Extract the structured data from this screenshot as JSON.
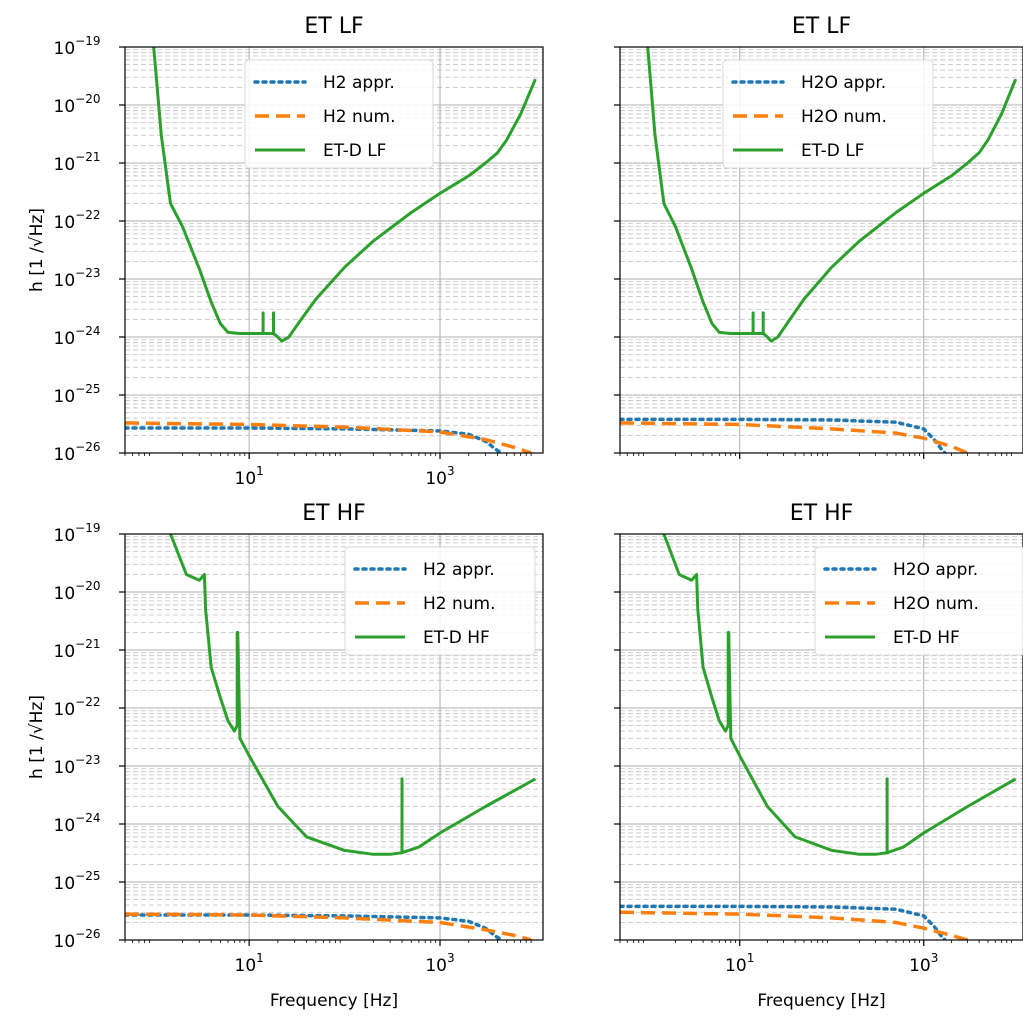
{
  "chart_data": [
    {
      "type": "line",
      "title": "ET LF",
      "xlabel": "",
      "ylabel": "h [1 /√Hz]",
      "xscale": "log",
      "yscale": "log",
      "xlim": [
        0.5,
        12000
      ],
      "ylim": [
        1e-26,
        1e-19
      ],
      "x_ticks": [
        "10^1",
        "10^3"
      ],
      "y_ticks": [
        "10^-19",
        "10^-20",
        "10^-21",
        "10^-22",
        "10^-23",
        "10^-24",
        "10^-25",
        "10^-26"
      ],
      "grid": true,
      "legend_position": "upper center",
      "series": [
        {
          "name": "H2 appr.",
          "color": "#1f77b4",
          "style": "dotted",
          "points": [
            [
              0.5,
              2.7e-26
            ],
            [
              10,
              2.7e-26
            ],
            [
              100,
              2.6e-26
            ],
            [
              1000,
              2.4e-26
            ],
            [
              2000,
              2.1e-26
            ],
            [
              3000,
              1.6e-26
            ],
            [
              4000,
              1.1e-26
            ],
            [
              4500,
              1e-26
            ]
          ]
        },
        {
          "name": "H2 num.",
          "color": "#ff7f0e",
          "style": "dashed",
          "points": [
            [
              0.5,
              3.3e-26
            ],
            [
              10,
              3.1e-26
            ],
            [
              100,
              2.8e-26
            ],
            [
              1000,
              2.3e-26
            ],
            [
              3000,
              1.7e-26
            ],
            [
              6000,
              1.25e-26
            ],
            [
              9000,
              1e-26
            ]
          ]
        },
        {
          "name": "ET-D LF",
          "color": "#2ca02c",
          "style": "solid",
          "points": [
            [
              1.0,
              1e-19
            ],
            [
              1.2,
              3e-21
            ],
            [
              1.5,
              2e-22
            ],
            [
              2,
              8e-23
            ],
            [
              3,
              1.5e-23
            ],
            [
              4,
              4e-24
            ],
            [
              5,
              1.7e-24
            ],
            [
              6,
              1.2e-24
            ],
            [
              8,
              1.15e-24
            ],
            [
              12,
              1.15e-24
            ],
            [
              14,
              1.15e-24
            ],
            [
              14,
              2.6e-24
            ],
            [
              14,
              1.15e-24
            ],
            [
              18,
              1.15e-24
            ],
            [
              18,
              2.6e-24
            ],
            [
              18,
              1.15e-24
            ],
            [
              20,
              1e-24
            ],
            [
              22,
              8.5e-25
            ],
            [
              26,
              1e-24
            ],
            [
              35,
              2e-24
            ],
            [
              50,
              4.5e-24
            ],
            [
              100,
              1.6e-23
            ],
            [
              200,
              4.5e-23
            ],
            [
              500,
              1.4e-22
            ],
            [
              1000,
              3e-22
            ],
            [
              2000,
              6e-22
            ],
            [
              3000,
              1e-21
            ],
            [
              4000,
              1.5e-21
            ],
            [
              5000,
              2.5e-21
            ],
            [
              7000,
              7e-21
            ],
            [
              10000,
              2.8e-20
            ]
          ]
        }
      ]
    },
    {
      "type": "line",
      "title": "ET LF",
      "xlabel": "",
      "ylabel": "",
      "xscale": "log",
      "yscale": "log",
      "xlim": [
        0.5,
        12000
      ],
      "ylim": [
        1e-26,
        1e-19
      ],
      "x_ticks": [],
      "y_ticks": [],
      "grid": true,
      "legend_position": "upper center",
      "series": [
        {
          "name": "H2O appr.",
          "color": "#1f77b4",
          "style": "dotted",
          "points": [
            [
              0.5,
              3.8e-26
            ],
            [
              10,
              3.8e-26
            ],
            [
              100,
              3.7e-26
            ],
            [
              500,
              3.4e-26
            ],
            [
              1000,
              2.6e-26
            ],
            [
              1300,
              1.7e-26
            ],
            [
              1600,
              1.1e-26
            ],
            [
              1700,
              1e-26
            ]
          ]
        },
        {
          "name": "H2O num.",
          "color": "#ff7f0e",
          "style": "dashed",
          "points": [
            [
              0.5,
              3.3e-26
            ],
            [
              10,
              3.1e-26
            ],
            [
              100,
              2.6e-26
            ],
            [
              500,
              2.2e-26
            ],
            [
              1000,
              1.8e-26
            ],
            [
              2000,
              1.3e-26
            ],
            [
              3000,
              1e-26
            ]
          ]
        },
        {
          "name": "ET-D LF",
          "color": "#2ca02c",
          "style": "solid",
          "points": [
            [
              1.0,
              1e-19
            ],
            [
              1.2,
              3e-21
            ],
            [
              1.5,
              2e-22
            ],
            [
              2,
              8e-23
            ],
            [
              3,
              1.5e-23
            ],
            [
              4,
              4e-24
            ],
            [
              5,
              1.7e-24
            ],
            [
              6,
              1.2e-24
            ],
            [
              8,
              1.15e-24
            ],
            [
              12,
              1.15e-24
            ],
            [
              14,
              1.15e-24
            ],
            [
              14,
              2.6e-24
            ],
            [
              14,
              1.15e-24
            ],
            [
              18,
              1.15e-24
            ],
            [
              18,
              2.6e-24
            ],
            [
              18,
              1.15e-24
            ],
            [
              20,
              1e-24
            ],
            [
              22,
              8.5e-25
            ],
            [
              26,
              1e-24
            ],
            [
              35,
              2e-24
            ],
            [
              50,
              4.5e-24
            ],
            [
              100,
              1.6e-23
            ],
            [
              200,
              4.5e-23
            ],
            [
              500,
              1.4e-22
            ],
            [
              1000,
              3e-22
            ],
            [
              2000,
              6e-22
            ],
            [
              3000,
              1e-21
            ],
            [
              4000,
              1.5e-21
            ],
            [
              5000,
              2.5e-21
            ],
            [
              7000,
              7e-21
            ],
            [
              10000,
              2.8e-20
            ]
          ]
        }
      ]
    },
    {
      "type": "line",
      "title": "ET HF",
      "xlabel": "Frequency [Hz]",
      "ylabel": "h [1 /√Hz]",
      "xscale": "log",
      "yscale": "log",
      "xlim": [
        0.5,
        12000
      ],
      "ylim": [
        1e-26,
        1e-19
      ],
      "x_ticks": [
        "10^1",
        "10^3"
      ],
      "y_ticks": [
        "10^-19",
        "10^-20",
        "10^-21",
        "10^-22",
        "10^-23",
        "10^-24",
        "10^-25",
        "10^-26"
      ],
      "grid": true,
      "legend_position": "upper right",
      "series": [
        {
          "name": "H2 appr.",
          "color": "#1f77b4",
          "style": "dotted",
          "points": [
            [
              0.5,
              2.7e-26
            ],
            [
              10,
              2.7e-26
            ],
            [
              100,
              2.6e-26
            ],
            [
              1000,
              2.4e-26
            ],
            [
              2000,
              2.1e-26
            ],
            [
              3000,
              1.6e-26
            ],
            [
              4000,
              1.1e-26
            ],
            [
              4500,
              1e-26
            ]
          ]
        },
        {
          "name": "H2 num.",
          "color": "#ff7f0e",
          "style": "dashed",
          "points": [
            [
              0.5,
              2.8e-26
            ],
            [
              10,
              2.7e-26
            ],
            [
              100,
              2.4e-26
            ],
            [
              1000,
              2e-26
            ],
            [
              3000,
              1.5e-26
            ],
            [
              6000,
              1.2e-26
            ],
            [
              9000,
              1e-26
            ]
          ]
        },
        {
          "name": "ET-D HF",
          "color": "#2ca02c",
          "style": "solid",
          "points": [
            [
              1.5,
              1e-19
            ],
            [
              2.2,
              2e-20
            ],
            [
              3,
              1.6e-20
            ],
            [
              3.4,
              2e-20
            ],
            [
              3.5,
              5e-21
            ],
            [
              4,
              5e-22
            ],
            [
              5,
              1.5e-22
            ],
            [
              6,
              6e-23
            ],
            [
              7,
              4e-23
            ],
            [
              7.5,
              5e-23
            ],
            [
              7.5,
              2e-21
            ],
            [
              7.6,
              2e-21
            ],
            [
              8,
              3e-23
            ],
            [
              10,
              1.5e-23
            ],
            [
              20,
              2e-24
            ],
            [
              40,
              6e-25
            ],
            [
              100,
              3.5e-25
            ],
            [
              200,
              3e-25
            ],
            [
              300,
              3e-25
            ],
            [
              400,
              3.2e-25
            ],
            [
              400,
              6e-24
            ],
            [
              400,
              3.2e-25
            ],
            [
              600,
              4e-25
            ],
            [
              1000,
              7e-25
            ],
            [
              3000,
              2e-24
            ],
            [
              10000,
              6e-24
            ]
          ]
        }
      ]
    },
    {
      "type": "line",
      "title": "ET HF",
      "xlabel": "Frequency [Hz]",
      "ylabel": "",
      "xscale": "log",
      "yscale": "log",
      "xlim": [
        0.5,
        12000
      ],
      "ylim": [
        1e-26,
        1e-19
      ],
      "x_ticks": [
        "10^1",
        "10^3"
      ],
      "y_ticks": [],
      "grid": true,
      "legend_position": "upper right",
      "series": [
        {
          "name": "H2O appr.",
          "color": "#1f77b4",
          "style": "dotted",
          "points": [
            [
              0.5,
              3.8e-26
            ],
            [
              10,
              3.8e-26
            ],
            [
              100,
              3.7e-26
            ],
            [
              500,
              3.4e-26
            ],
            [
              1000,
              2.6e-26
            ],
            [
              1300,
              1.7e-26
            ],
            [
              1600,
              1.1e-26
            ],
            [
              1700,
              1e-26
            ]
          ]
        },
        {
          "name": "H2O num.",
          "color": "#ff7f0e",
          "style": "dashed",
          "points": [
            [
              0.5,
              3e-26
            ],
            [
              10,
              2.8e-26
            ],
            [
              100,
              2.4e-26
            ],
            [
              500,
              2e-26
            ],
            [
              1000,
              1.6e-26
            ],
            [
              2000,
              1.2e-26
            ],
            [
              3000,
              1e-26
            ]
          ]
        },
        {
          "name": "ET-D HF",
          "color": "#2ca02c",
          "style": "solid",
          "points": [
            [
              1.5,
              1e-19
            ],
            [
              2.2,
              2e-20
            ],
            [
              3,
              1.6e-20
            ],
            [
              3.4,
              2e-20
            ],
            [
              3.5,
              5e-21
            ],
            [
              4,
              5e-22
            ],
            [
              5,
              1.5e-22
            ],
            [
              6,
              6e-23
            ],
            [
              7,
              4e-23
            ],
            [
              7.5,
              5e-23
            ],
            [
              7.5,
              2e-21
            ],
            [
              7.6,
              2e-21
            ],
            [
              8,
              3e-23
            ],
            [
              10,
              1.5e-23
            ],
            [
              20,
              2e-24
            ],
            [
              40,
              6e-25
            ],
            [
              100,
              3.5e-25
            ],
            [
              200,
              3e-25
            ],
            [
              300,
              3e-25
            ],
            [
              400,
              3.2e-25
            ],
            [
              400,
              6e-24
            ],
            [
              400,
              3.2e-25
            ],
            [
              600,
              4e-25
            ],
            [
              1000,
              7e-25
            ],
            [
              3000,
              2e-24
            ],
            [
              10000,
              6e-24
            ]
          ]
        }
      ]
    }
  ]
}
